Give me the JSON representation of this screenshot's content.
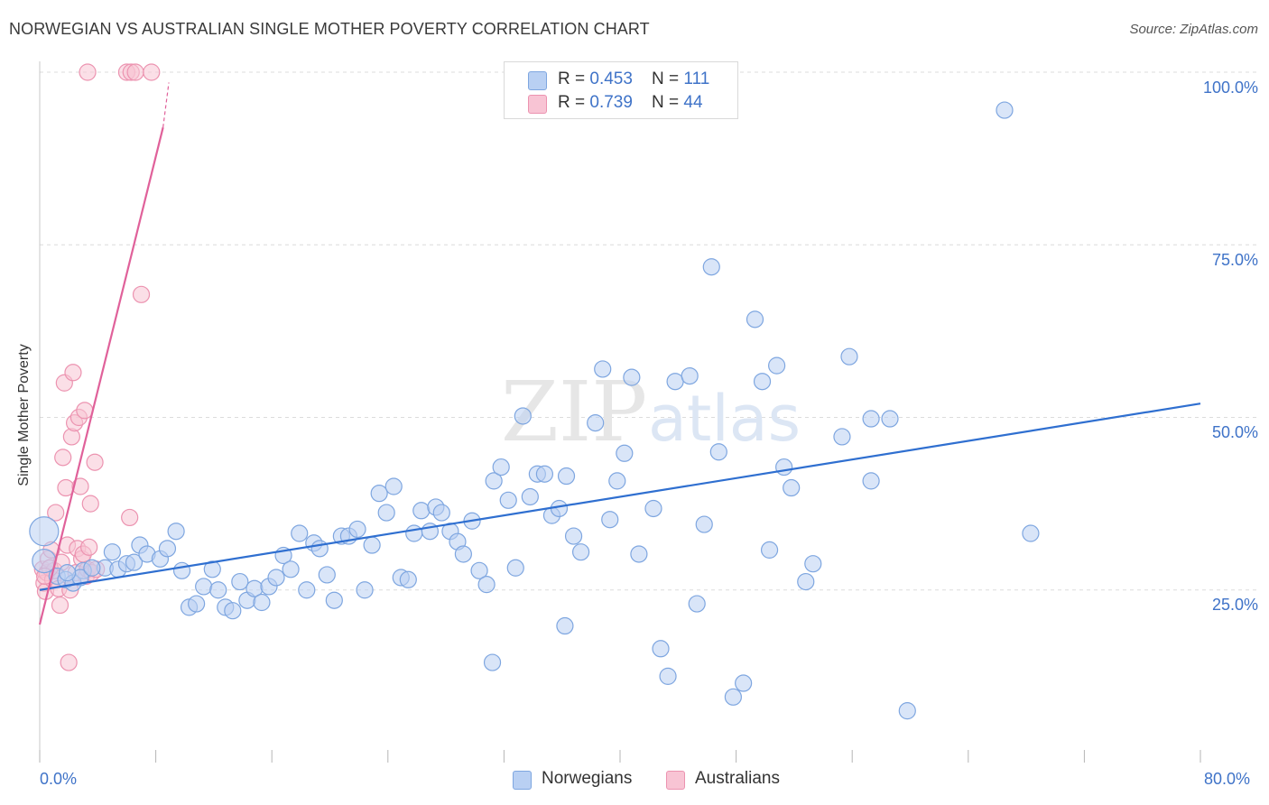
{
  "title": "NORWEGIAN VS AUSTRALIAN SINGLE MOTHER POVERTY CORRELATION CHART",
  "source": "Source: ZipAtlas.com",
  "watermark": {
    "zip": "ZIP",
    "atlas": "atlas"
  },
  "colors": {
    "blue_fill": "#b9d0f3",
    "blue_stroke": "#7ea6e0",
    "blue_line": "#2f6fd0",
    "pink_fill": "#f8c4d4",
    "pink_stroke": "#ec93b0",
    "pink_line": "#e0619a",
    "tick_text": "#3f73c8",
    "grid": "#dcdcdc"
  },
  "legend": {
    "rows": [
      {
        "r_label": "R = ",
        "r_value": "0.453",
        "n_label": "N = ",
        "n_value": "111"
      },
      {
        "r_label": "R = ",
        "r_value": "0.739",
        "n_label": "N = ",
        "n_value": "44"
      }
    ]
  },
  "bottom_legend": {
    "norwegians": "Norwegians",
    "australians": "Australians"
  },
  "chart_data": {
    "type": "scatter",
    "title": "NORWEGIAN VS AUSTRALIAN SINGLE MOTHER POVERTY CORRELATION CHART",
    "xlabel": "",
    "ylabel": "Single Mother Poverty",
    "xlim": [
      0,
      80
    ],
    "ylim": [
      0,
      100
    ],
    "x_ticks": [
      "0.0%",
      "80.0%"
    ],
    "y_ticks": [
      {
        "value": 100,
        "label": "100.0%"
      },
      {
        "value": 75,
        "label": "75.0%"
      },
      {
        "value": 50,
        "label": "50.0%"
      },
      {
        "value": 25,
        "label": "25.0%"
      }
    ],
    "grid": true,
    "series": [
      {
        "name": "Norwegians",
        "R": 0.453,
        "N": 111,
        "trendline": {
          "x": [
            0,
            80
          ],
          "y": [
            25.0,
            52.0
          ]
        },
        "points": [
          [
            0.3,
            33.5,
            16
          ],
          [
            0.3,
            29.2,
            13
          ],
          [
            1.2,
            27.0,
            9
          ],
          [
            1.8,
            26.5,
            9
          ],
          [
            2.3,
            26.0,
            9
          ],
          [
            3.0,
            27.8,
            9
          ],
          [
            4.5,
            28.2,
            9
          ],
          [
            5.0,
            30.5,
            9
          ],
          [
            5.4,
            28.0,
            9
          ],
          [
            6.0,
            28.8,
            9
          ],
          [
            6.5,
            29.0,
            9
          ],
          [
            6.9,
            31.5,
            9
          ],
          [
            7.4,
            30.2,
            9
          ],
          [
            8.3,
            29.5,
            9
          ],
          [
            8.8,
            31.0,
            9
          ],
          [
            9.4,
            33.5,
            9
          ],
          [
            9.8,
            27.8,
            9
          ],
          [
            10.3,
            22.5,
            9
          ],
          [
            10.8,
            23.0,
            9
          ],
          [
            11.3,
            25.5,
            9
          ],
          [
            11.9,
            28.0,
            9
          ],
          [
            12.3,
            25.0,
            9
          ],
          [
            12.8,
            22.5,
            9
          ],
          [
            13.3,
            22.0,
            9
          ],
          [
            13.8,
            26.2,
            9
          ],
          [
            14.3,
            23.5,
            9
          ],
          [
            14.8,
            25.2,
            9
          ],
          [
            15.3,
            23.2,
            9
          ],
          [
            15.8,
            25.5,
            9
          ],
          [
            16.3,
            26.8,
            9
          ],
          [
            16.8,
            30.0,
            9
          ],
          [
            17.3,
            28.0,
            9
          ],
          [
            17.9,
            33.2,
            9
          ],
          [
            18.4,
            25.0,
            9
          ],
          [
            18.9,
            31.8,
            9
          ],
          [
            19.3,
            31.0,
            9
          ],
          [
            19.8,
            27.2,
            9
          ],
          [
            20.3,
            23.5,
            9
          ],
          [
            20.8,
            32.8,
            9
          ],
          [
            21.3,
            32.8,
            9
          ],
          [
            21.9,
            33.8,
            9
          ],
          [
            22.4,
            25.0,
            9
          ],
          [
            22.9,
            31.5,
            9
          ],
          [
            23.4,
            39.0,
            9
          ],
          [
            23.9,
            36.2,
            9
          ],
          [
            24.4,
            40.0,
            9
          ],
          [
            24.9,
            26.8,
            9
          ],
          [
            25.4,
            26.5,
            9
          ],
          [
            25.8,
            33.2,
            9
          ],
          [
            26.3,
            36.5,
            9
          ],
          [
            26.9,
            33.5,
            9
          ],
          [
            27.3,
            37.0,
            9
          ],
          [
            27.7,
            36.2,
            9
          ],
          [
            28.3,
            33.5,
            9
          ],
          [
            28.8,
            32.0,
            9
          ],
          [
            29.2,
            30.2,
            9
          ],
          [
            29.8,
            35.0,
            9
          ],
          [
            30.3,
            27.8,
            9
          ],
          [
            30.8,
            25.8,
            9
          ],
          [
            31.3,
            40.8,
            9
          ],
          [
            31.8,
            42.8,
            9
          ],
          [
            32.3,
            38.0,
            9
          ],
          [
            32.8,
            28.2,
            9
          ],
          [
            33.3,
            50.2,
            9
          ],
          [
            33.8,
            38.5,
            9
          ],
          [
            34.3,
            41.8,
            9
          ],
          [
            34.8,
            41.8,
            9
          ],
          [
            35.3,
            35.8,
            9
          ],
          [
            35.8,
            36.8,
            9
          ],
          [
            36.3,
            41.5,
            9
          ],
          [
            36.8,
            32.8,
            9
          ],
          [
            37.3,
            30.5,
            9
          ],
          [
            38.3,
            49.2,
            9
          ],
          [
            38.8,
            57.0,
            9
          ],
          [
            39.3,
            35.2,
            9
          ],
          [
            39.8,
            40.8,
            9
          ],
          [
            40.3,
            44.8,
            9
          ],
          [
            40.8,
            55.8,
            9
          ],
          [
            41.3,
            30.2,
            9
          ],
          [
            42.3,
            36.8,
            9
          ],
          [
            42.8,
            16.5,
            9
          ],
          [
            43.3,
            12.5,
            9
          ],
          [
            43.8,
            55.2,
            9
          ],
          [
            44.8,
            56.0,
            9
          ],
          [
            45.3,
            23.0,
            9
          ],
          [
            45.8,
            34.5,
            9
          ],
          [
            46.3,
            71.8,
            9
          ],
          [
            46.8,
            45.0,
            9
          ],
          [
            47.8,
            9.5,
            9
          ],
          [
            48.5,
            11.5,
            9
          ],
          [
            49.3,
            64.2,
            9
          ],
          [
            49.8,
            55.2,
            9
          ],
          [
            50.3,
            30.8,
            9
          ],
          [
            50.8,
            57.5,
            9
          ],
          [
            51.3,
            42.8,
            9
          ],
          [
            51.8,
            39.8,
            9
          ],
          [
            52.8,
            26.2,
            9
          ],
          [
            53.3,
            28.8,
            9
          ],
          [
            55.3,
            47.2,
            9
          ],
          [
            55.8,
            58.8,
            9
          ],
          [
            57.3,
            40.8,
            9
          ],
          [
            57.3,
            49.8,
            9
          ],
          [
            58.6,
            49.8,
            9
          ],
          [
            59.8,
            7.5,
            9
          ],
          [
            68.3,
            33.2,
            9
          ],
          [
            66.5,
            94.5,
            9
          ],
          [
            36.2,
            19.8,
            9
          ],
          [
            31.2,
            14.5,
            9
          ],
          [
            2.8,
            26.8,
            9
          ],
          [
            3.6,
            28.2,
            9
          ],
          [
            1.9,
            27.5,
            9
          ]
        ]
      },
      {
        "name": "Australians",
        "R": 0.739,
        "N": 44,
        "trendline": {
          "x": [
            0,
            8.5
          ],
          "y": [
            20.0,
            92.0
          ]
        },
        "trendline_dashed": {
          "x": [
            8.5,
            8.9
          ],
          "y": [
            92.0,
            98.5
          ]
        },
        "points": [
          [
            0.2,
            28.0,
            9
          ],
          [
            0.3,
            26.0,
            9
          ],
          [
            0.4,
            24.8,
            9
          ],
          [
            0.5,
            27.5,
            9
          ],
          [
            0.6,
            29.5,
            9
          ],
          [
            0.8,
            30.8,
            9
          ],
          [
            0.9,
            26.5,
            9
          ],
          [
            1.1,
            36.2,
            9
          ],
          [
            1.3,
            25.2,
            9
          ],
          [
            1.4,
            22.8,
            9
          ],
          [
            1.6,
            44.2,
            9
          ],
          [
            1.7,
            55.0,
            9
          ],
          [
            1.8,
            39.8,
            9
          ],
          [
            1.9,
            31.5,
            9
          ],
          [
            2.0,
            14.5,
            9
          ],
          [
            2.1,
            25.0,
            9
          ],
          [
            2.2,
            47.2,
            9
          ],
          [
            2.3,
            56.5,
            9
          ],
          [
            2.4,
            49.2,
            9
          ],
          [
            2.5,
            27.5,
            9
          ],
          [
            2.6,
            31.0,
            9
          ],
          [
            2.7,
            50.0,
            9
          ],
          [
            2.8,
            40.0,
            9
          ],
          [
            2.9,
            29.5,
            9
          ],
          [
            3.0,
            30.2,
            9
          ],
          [
            3.1,
            51.0,
            9
          ],
          [
            3.2,
            27.0,
            9
          ],
          [
            3.3,
            28.0,
            9
          ],
          [
            3.4,
            31.2,
            9
          ],
          [
            3.5,
            37.5,
            9
          ],
          [
            3.6,
            27.5,
            9
          ],
          [
            3.8,
            43.5,
            9
          ],
          [
            6.2,
            35.5,
            9
          ],
          [
            7.0,
            67.8,
            9
          ],
          [
            1.0,
            27.8,
            9
          ],
          [
            0.7,
            28.2,
            9
          ],
          [
            0.35,
            27.0,
            9
          ],
          [
            1.5,
            29.0,
            9
          ],
          [
            3.9,
            28.0,
            9
          ],
          [
            3.3,
            100.0,
            9
          ],
          [
            6.0,
            100.0,
            9
          ],
          [
            6.3,
            100.0,
            9
          ],
          [
            6.6,
            100.0,
            9
          ],
          [
            7.7,
            100.0,
            9
          ]
        ]
      }
    ]
  }
}
